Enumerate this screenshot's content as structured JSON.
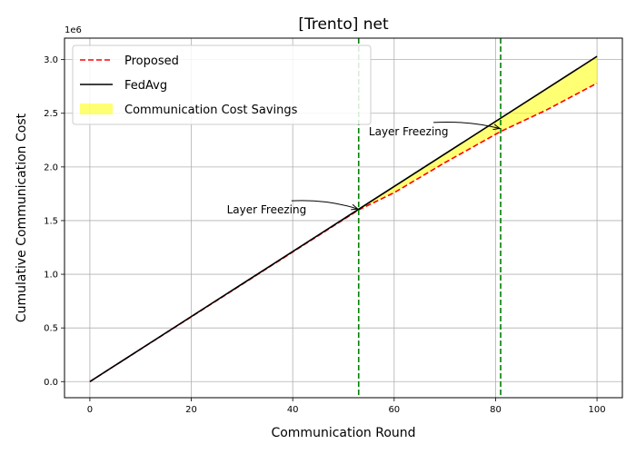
{
  "chart_data": {
    "type": "line",
    "title": "[Trento] net",
    "xlabel": "Communication Round",
    "ylabel": "Cumulative Communication Cost",
    "y_offset_label": "1e6",
    "xlim": [
      -5,
      105
    ],
    "ylim": [
      -150000,
      3200000
    ],
    "x_ticks": [
      0,
      20,
      40,
      60,
      80,
      100
    ],
    "y_ticks": [
      0,
      500000,
      1000000,
      1500000,
      2000000,
      2500000,
      3000000
    ],
    "y_tick_labels": [
      "0.0",
      "0.5",
      "1.0",
      "1.5",
      "2.0",
      "2.5",
      "3.0"
    ],
    "grid": true,
    "legend_position": "top-left",
    "series": [
      {
        "name": "Proposed",
        "color": "#ff0000",
        "style": "dashed",
        "x": [
          0,
          53,
          60,
          70,
          81,
          90,
          100
        ],
        "y": [
          0,
          1600000,
          1760000,
          2040000,
          2330000,
          2530000,
          2780000
        ]
      },
      {
        "name": "FedAvg",
        "color": "#000000",
        "style": "solid",
        "x": [
          0,
          100
        ],
        "y": [
          0,
          3030000
        ]
      }
    ],
    "fill_between": {
      "name": "Communication Cost Savings",
      "color": "#ffff00",
      "opacity": 0.55
    },
    "vlines": [
      {
        "x": 53,
        "color": "#008000",
        "style": "dashed"
      },
      {
        "x": 81,
        "color": "#008000",
        "style": "dashed"
      }
    ],
    "annotations": [
      {
        "text": "Layer Freezing",
        "target_x": 53,
        "target_y": 1600000,
        "text_x": 27,
        "text_y": 1600000
      },
      {
        "text": "Layer Freezing",
        "target_x": 81,
        "target_y": 2350000,
        "text_x": 55,
        "text_y": 2330000
      }
    ]
  }
}
